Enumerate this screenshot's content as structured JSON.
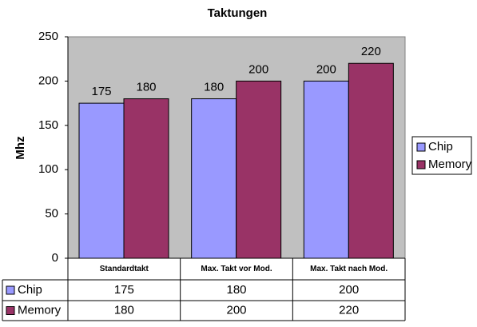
{
  "chart_data": {
    "type": "bar",
    "title": "Taktungen",
    "y_label": "Mhz",
    "categories": [
      "Standardtakt",
      "Max. Takt vor Mod.",
      "Max. Takt nach Mod."
    ],
    "series": [
      {
        "name": "Chip",
        "color": "#9999ff",
        "values": [
          175,
          180,
          200
        ]
      },
      {
        "name": "Memory",
        "color": "#993366",
        "values": [
          180,
          200,
          220
        ]
      }
    ],
    "ylim": [
      0,
      250
    ],
    "yticks": [
      0,
      50,
      100,
      150,
      200,
      250
    ],
    "grid": false,
    "legend": "right",
    "data_table": true,
    "plot_background": "#c0c0c0"
  }
}
